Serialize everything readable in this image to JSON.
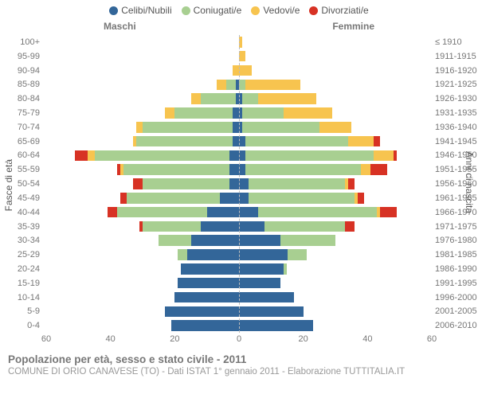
{
  "type": "population-pyramid",
  "background_color": "#ffffff",
  "title": "Popolazione per età, sesso e stato civile - 2011",
  "title_fontsize": 13.5,
  "title_color": "#777777",
  "subtitle": "COMUNE DI ORIO CANAVESE (TO) - Dati ISTAT 1° gennaio 2011 - Elaborazione TUTTITALIA.IT",
  "subtitle_fontsize": 11.5,
  "subtitle_color": "#999999",
  "y_label_left": "Fasce di età",
  "y_label_right": "Anni di nascita",
  "gender_left": "Maschi",
  "gender_right": "Femmine",
  "legend": [
    {
      "label": "Celibi/Nubili",
      "color": "#336699"
    },
    {
      "label": "Coniugati/e",
      "color": "#a8cf91"
    },
    {
      "label": "Vedovi/e",
      "color": "#f7c44f"
    },
    {
      "label": "Divorziati/e",
      "color": "#d73224"
    }
  ],
  "series_colors": {
    "celibi": "#336699",
    "coniugati": "#a8cf91",
    "vedovi": "#f7c44f",
    "divorziati": "#d73224"
  },
  "axis": {
    "max": 60,
    "ticks": [
      60,
      40,
      20,
      0,
      20,
      40,
      60
    ],
    "font_color": "#777777"
  },
  "grid": {
    "dash_color": "#ffffff",
    "center_color": "#bbbbbb"
  },
  "rows": [
    {
      "age": "100+",
      "birth": "≤ 1910",
      "m": {
        "cel": 0,
        "con": 0,
        "ved": 0,
        "div": 0
      },
      "f": {
        "cel": 0,
        "con": 0,
        "ved": 1,
        "div": 0
      }
    },
    {
      "age": "95-99",
      "birth": "1911-1915",
      "m": {
        "cel": 0,
        "con": 0,
        "ved": 0,
        "div": 0
      },
      "f": {
        "cel": 0,
        "con": 0,
        "ved": 2,
        "div": 0
      }
    },
    {
      "age": "90-94",
      "birth": "1916-1920",
      "m": {
        "cel": 0,
        "con": 0,
        "ved": 2,
        "div": 0
      },
      "f": {
        "cel": 0,
        "con": 0,
        "ved": 4,
        "div": 0
      }
    },
    {
      "age": "85-89",
      "birth": "1921-1925",
      "m": {
        "cel": 1,
        "con": 3,
        "ved": 3,
        "div": 0
      },
      "f": {
        "cel": 0,
        "con": 2,
        "ved": 17,
        "div": 0
      }
    },
    {
      "age": "80-84",
      "birth": "1926-1930",
      "m": {
        "cel": 1,
        "con": 11,
        "ved": 3,
        "div": 0
      },
      "f": {
        "cel": 1,
        "con": 5,
        "ved": 18,
        "div": 0
      }
    },
    {
      "age": "75-79",
      "birth": "1931-1935",
      "m": {
        "cel": 2,
        "con": 18,
        "ved": 3,
        "div": 0
      },
      "f": {
        "cel": 1,
        "con": 13,
        "ved": 15,
        "div": 0
      }
    },
    {
      "age": "70-74",
      "birth": "1936-1940",
      "m": {
        "cel": 2,
        "con": 28,
        "ved": 2,
        "div": 0
      },
      "f": {
        "cel": 1,
        "con": 24,
        "ved": 10,
        "div": 0
      }
    },
    {
      "age": "65-69",
      "birth": "1941-1945",
      "m": {
        "cel": 2,
        "con": 30,
        "ved": 1,
        "div": 0
      },
      "f": {
        "cel": 2,
        "con": 32,
        "ved": 8,
        "div": 2
      }
    },
    {
      "age": "60-64",
      "birth": "1946-1950",
      "m": {
        "cel": 3,
        "con": 42,
        "ved": 2,
        "div": 4
      },
      "f": {
        "cel": 2,
        "con": 40,
        "ved": 6,
        "div": 1
      }
    },
    {
      "age": "55-59",
      "birth": "1951-1955",
      "m": {
        "cel": 3,
        "con": 33,
        "ved": 1,
        "div": 1
      },
      "f": {
        "cel": 2,
        "con": 36,
        "ved": 3,
        "div": 5
      }
    },
    {
      "age": "50-54",
      "birth": "1956-1960",
      "m": {
        "cel": 3,
        "con": 27,
        "ved": 0,
        "div": 3
      },
      "f": {
        "cel": 3,
        "con": 30,
        "ved": 1,
        "div": 2
      }
    },
    {
      "age": "45-49",
      "birth": "1961-1965",
      "m": {
        "cel": 6,
        "con": 29,
        "ved": 0,
        "div": 2
      },
      "f": {
        "cel": 3,
        "con": 33,
        "ved": 1,
        "div": 2
      }
    },
    {
      "age": "40-44",
      "birth": "1966-1970",
      "m": {
        "cel": 10,
        "con": 28,
        "ved": 0,
        "div": 3
      },
      "f": {
        "cel": 6,
        "con": 37,
        "ved": 1,
        "div": 5
      }
    },
    {
      "age": "35-39",
      "birth": "1971-1975",
      "m": {
        "cel": 12,
        "con": 18,
        "ved": 0,
        "div": 1
      },
      "f": {
        "cel": 8,
        "con": 25,
        "ved": 0,
        "div": 3
      }
    },
    {
      "age": "30-34",
      "birth": "1976-1980",
      "m": {
        "cel": 15,
        "con": 10,
        "ved": 0,
        "div": 0
      },
      "f": {
        "cel": 13,
        "con": 17,
        "ved": 0,
        "div": 0
      }
    },
    {
      "age": "25-29",
      "birth": "1981-1985",
      "m": {
        "cel": 16,
        "con": 3,
        "ved": 0,
        "div": 0
      },
      "f": {
        "cel": 15,
        "con": 6,
        "ved": 0,
        "div": 0
      }
    },
    {
      "age": "20-24",
      "birth": "1986-1990",
      "m": {
        "cel": 18,
        "con": 0,
        "ved": 0,
        "div": 0
      },
      "f": {
        "cel": 14,
        "con": 1,
        "ved": 0,
        "div": 0
      }
    },
    {
      "age": "15-19",
      "birth": "1991-1995",
      "m": {
        "cel": 19,
        "con": 0,
        "ved": 0,
        "div": 0
      },
      "f": {
        "cel": 13,
        "con": 0,
        "ved": 0,
        "div": 0
      }
    },
    {
      "age": "10-14",
      "birth": "1996-2000",
      "m": {
        "cel": 20,
        "con": 0,
        "ved": 0,
        "div": 0
      },
      "f": {
        "cel": 17,
        "con": 0,
        "ved": 0,
        "div": 0
      }
    },
    {
      "age": "5-9",
      "birth": "2001-2005",
      "m": {
        "cel": 23,
        "con": 0,
        "ved": 0,
        "div": 0
      },
      "f": {
        "cel": 20,
        "con": 0,
        "ved": 0,
        "div": 0
      }
    },
    {
      "age": "0-4",
      "birth": "2006-2010",
      "m": {
        "cel": 21,
        "con": 0,
        "ved": 0,
        "div": 0
      },
      "f": {
        "cel": 23,
        "con": 0,
        "ved": 0,
        "div": 0
      }
    }
  ]
}
